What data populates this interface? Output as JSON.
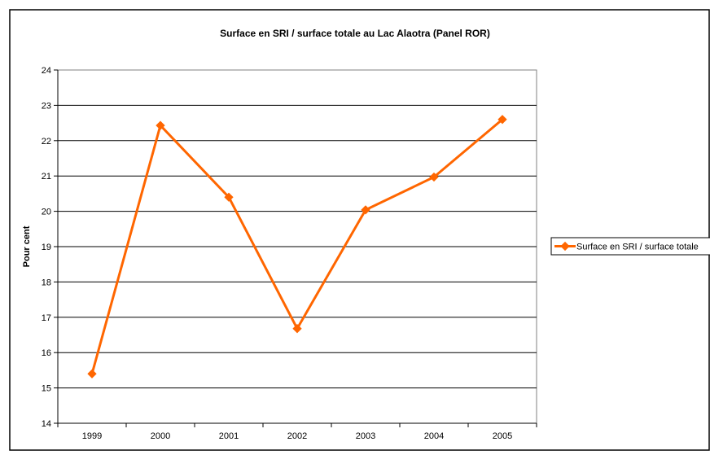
{
  "chart_data": {
    "type": "line",
    "title": "Surface en SRI / surface totale au Lac Alaotra (Panel ROR)",
    "xlabel": "",
    "ylabel": "Pour cent",
    "categories": [
      "1999",
      "2000",
      "2001",
      "2002",
      "2003",
      "2004",
      "2005"
    ],
    "series": [
      {
        "name": "Surface en SRI / surface totale",
        "values": [
          15.4,
          22.43,
          20.4,
          16.68,
          20.04,
          20.97,
          22.6
        ],
        "color": "#FF6600"
      }
    ],
    "ylim": [
      14,
      24
    ],
    "yticks": [
      14,
      15,
      16,
      17,
      18,
      19,
      20,
      21,
      22,
      23,
      24
    ],
    "grid": "horizontal",
    "legend_position": "right",
    "plot_background": "#ffffff",
    "frame_color": "#000000"
  }
}
